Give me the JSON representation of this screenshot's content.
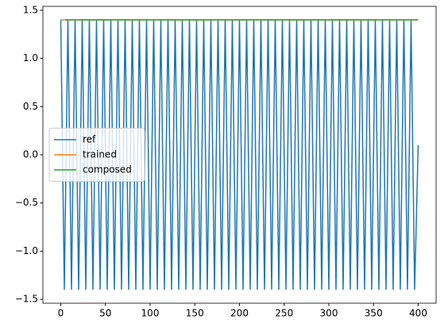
{
  "chart_data": {
    "type": "line",
    "series": [
      {
        "name": "ref",
        "color": "#1f77b4",
        "x": [
          0,
          4,
          8,
          12,
          16,
          20,
          24,
          28,
          32,
          36,
          40,
          44,
          48,
          52,
          56,
          60,
          64,
          68,
          72,
          76,
          80,
          84,
          88,
          92,
          96,
          100,
          104,
          108,
          112,
          116,
          120,
          124,
          128,
          132,
          136,
          140,
          144,
          148,
          152,
          156,
          160,
          164,
          168,
          172,
          176,
          180,
          184,
          188,
          192,
          196,
          200,
          204,
          208,
          212,
          216,
          220,
          224,
          228,
          232,
          236,
          240,
          244,
          248,
          252,
          256,
          260,
          264,
          268,
          272,
          276,
          280,
          284,
          288,
          292,
          296,
          300,
          304,
          308,
          312,
          316,
          320,
          324,
          328,
          332,
          336,
          340,
          344,
          348,
          352,
          356,
          360,
          364,
          368,
          372,
          376,
          380,
          384,
          388,
          392,
          396,
          400
        ],
        "values": [
          1.4,
          -1.4,
          1.4,
          -1.4,
          1.4,
          -1.4,
          1.4,
          -1.4,
          1.4,
          -1.4,
          1.4,
          -1.4,
          1.4,
          -1.4,
          1.4,
          -1.4,
          1.4,
          -1.4,
          1.4,
          -1.4,
          1.4,
          -1.4,
          1.4,
          -1.4,
          1.4,
          -1.4,
          1.4,
          -1.4,
          1.4,
          -1.4,
          1.4,
          -1.4,
          1.4,
          -1.4,
          1.4,
          -1.4,
          1.4,
          -1.4,
          1.4,
          -1.4,
          1.4,
          -1.4,
          1.4,
          -1.4,
          1.4,
          -1.4,
          1.4,
          -1.4,
          1.4,
          -1.4,
          1.4,
          -1.4,
          1.4,
          -1.4,
          1.4,
          -1.4,
          1.4,
          -1.4,
          1.4,
          -1.4,
          1.4,
          -1.4,
          1.4,
          -1.4,
          1.4,
          -1.4,
          1.4,
          -1.4,
          1.4,
          -1.4,
          1.4,
          -1.4,
          1.4,
          -1.4,
          1.4,
          -1.4,
          1.4,
          -1.4,
          1.4,
          -1.4,
          1.4,
          -1.4,
          1.4,
          -1.4,
          1.4,
          -1.4,
          1.4,
          -1.4,
          1.4,
          -1.4,
          1.4,
          -1.4,
          1.4,
          -1.4,
          1.4,
          -1.4,
          1.4,
          -1.4,
          1.4,
          -1.4,
          0.1
        ]
      },
      {
        "name": "trained",
        "color": "#ff7f0e",
        "x": [
          0,
          400
        ],
        "values": [
          1.4,
          1.4
        ]
      },
      {
        "name": "composed",
        "color": "#2ca02c",
        "x": [
          5,
          400
        ],
        "values": [
          1.4,
          1.4
        ]
      }
    ],
    "xlim": [
      -20,
      420
    ],
    "xticks": [
      0,
      50,
      100,
      150,
      200,
      250,
      300,
      350,
      400
    ],
    "ylim": [
      -1.54,
      1.54
    ],
    "yticks": [
      {
        "value": -1.5,
        "label": "−1.5"
      },
      {
        "value": -1.0,
        "label": "−1.0"
      },
      {
        "value": -0.5,
        "label": "−0.5"
      },
      {
        "value": 0,
        "label": "0.0"
      },
      {
        "value": 0.5,
        "label": "0.5"
      },
      {
        "value": 1.0,
        "label": "1.0"
      },
      {
        "value": 1.5,
        "label": "1.5"
      }
    ],
    "legend": "center left"
  }
}
